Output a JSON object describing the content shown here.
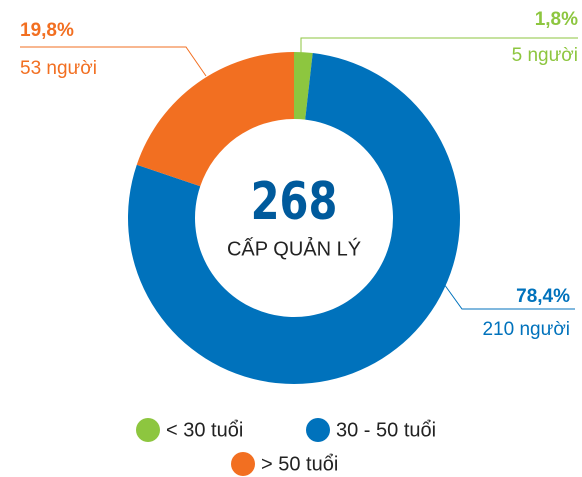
{
  "chart_data": {
    "type": "donut",
    "center_value": "268",
    "center_label": "CẤP QUẢN LÝ",
    "categories": [
      "< 30 tuổi",
      "30 - 50 tuổi",
      "> 50 tuổi"
    ],
    "values": [
      1.8,
      78.4,
      19.8
    ],
    "value_labels": [
      "1,8%",
      "78,4%",
      "19,8%"
    ],
    "count_labels": [
      "5 người",
      "210 người",
      "53 người"
    ],
    "colors": [
      "#8dc63f",
      "#0072bc",
      "#f26f21"
    ]
  }
}
